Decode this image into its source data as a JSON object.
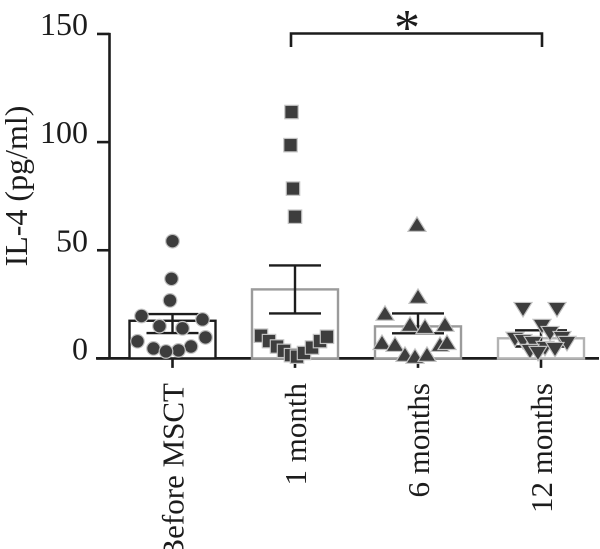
{
  "figure": {
    "kind": "scatter-bar-figure",
    "background": "#ffffff"
  },
  "chart_data": {
    "type": "bar",
    "title": "",
    "xlabel": "",
    "ylabel": "IL-4 (pg/ml)",
    "ylim": [
      0,
      150
    ],
    "yticks": [
      0,
      50,
      100,
      150
    ],
    "grid": false,
    "legend": "none",
    "categories": [
      "Before MSCT",
      "1 month",
      "6 months",
      "12 months"
    ],
    "colors": {
      "marker": "#3d3d3d",
      "marker_edge": "#c2c2c2",
      "axis": "#1c1c1c",
      "bar_fill": "#ffffff"
    },
    "groups": [
      {
        "label": "Before MSCT",
        "marker": "circle",
        "bar_outline": "#1c1c1c",
        "mean": 17.4,
        "err_low": 11.7,
        "err_high": 20.5,
        "points_v_dx": [
          [
            54.2,
            0
          ],
          [
            36.8,
            -1
          ],
          [
            26.8,
            -2.5
          ],
          [
            19.6,
            -31
          ],
          [
            18.0,
            30
          ],
          [
            14.9,
            -13
          ],
          [
            13.9,
            10
          ],
          [
            9.7,
            33
          ],
          [
            7.9,
            -35
          ],
          [
            5.5,
            18.5
          ],
          [
            4.6,
            -19
          ],
          [
            3.7,
            6
          ],
          [
            3.2,
            -6.5
          ]
        ]
      },
      {
        "label": "1 month",
        "marker": "square",
        "bar_outline": "#9b9b9b",
        "mean": 31.9,
        "err_low": 20.8,
        "err_high": 43.0,
        "points_v_dx": [
          [
            113.9,
            -3.5
          ],
          [
            98.6,
            -4.5
          ],
          [
            78.5,
            -2
          ],
          [
            65.5,
            0
          ],
          [
            10.5,
            -34
          ],
          [
            8.0,
            -26
          ],
          [
            5.5,
            -18
          ],
          [
            3.5,
            -11
          ],
          [
            1.5,
            -4
          ],
          [
            0.8,
            2
          ],
          [
            2.5,
            9
          ],
          [
            5.0,
            17
          ],
          [
            8.0,
            25
          ],
          [
            10.0,
            32
          ]
        ]
      },
      {
        "label": "6 months",
        "marker": "triangle-up",
        "bar_outline": "#9b9b9b",
        "mean": 14.8,
        "err_low": 11.6,
        "err_high": 20.8,
        "points_v_dx": [
          [
            61.5,
            -1
          ],
          [
            28.2,
            0
          ],
          [
            20.4,
            -33
          ],
          [
            15.3,
            -8
          ],
          [
            14.3,
            7
          ],
          [
            15.3,
            27
          ],
          [
            6.9,
            -36
          ],
          [
            6.0,
            -23
          ],
          [
            1.4,
            -13
          ],
          [
            0.5,
            -3
          ],
          [
            1.4,
            9
          ],
          [
            6.0,
            22
          ],
          [
            6.9,
            29
          ]
        ]
      },
      {
        "label": "12 months",
        "marker": "triangle-down",
        "bar_outline": "#b3b3b3",
        "mean": 9.3,
        "err_low": 5.5,
        "err_high": 13.0,
        "points_v_dx": [
          [
            23.1,
            -18
          ],
          [
            23.1,
            16
          ],
          [
            15.3,
            1
          ],
          [
            12.0,
            9
          ],
          [
            9.3,
            -26
          ],
          [
            9.7,
            21
          ],
          [
            8.3,
            -18
          ],
          [
            7.4,
            26
          ],
          [
            7.4,
            -8
          ],
          [
            5.1,
            4
          ],
          [
            4.6,
            14
          ],
          [
            3.7,
            -11
          ],
          [
            2.8,
            -3
          ]
        ]
      }
    ],
    "significance": {
      "label": "*",
      "from": "1 month",
      "to": "12 months"
    }
  }
}
